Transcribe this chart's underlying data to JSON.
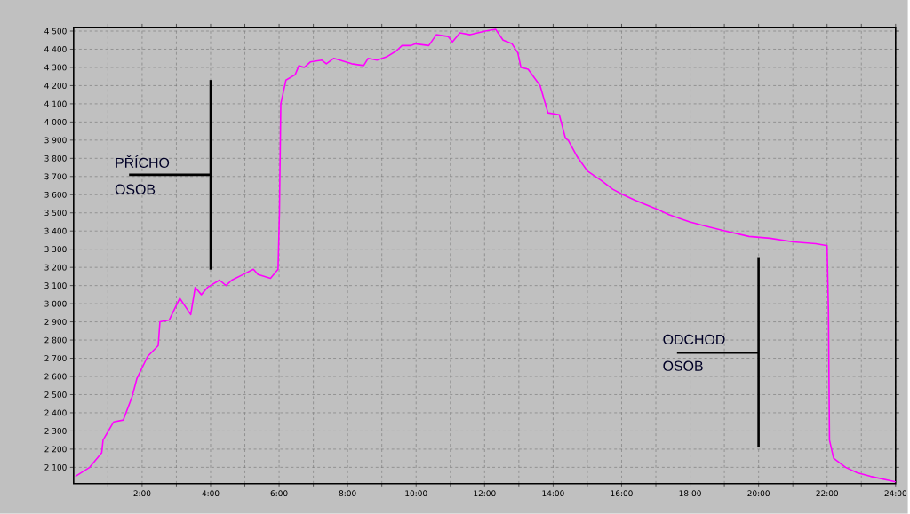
{
  "chart_data": {
    "type": "line",
    "color": "#ff00ff",
    "grid": true,
    "x": [
      0.05,
      0.47,
      0.82,
      0.86,
      1.17,
      1.45,
      1.71,
      1.85,
      2.16,
      2.47,
      2.52,
      2.79,
      3.1,
      3.42,
      3.55,
      3.73,
      3.91,
      4.26,
      4.45,
      4.62,
      4.94,
      5.25,
      5.39,
      5.75,
      5.97,
      6.01,
      6.05,
      6.2,
      6.47,
      6.58,
      6.74,
      6.91,
      7.25,
      7.38,
      7.6,
      8.12,
      8.47,
      8.6,
      8.86,
      9.16,
      9.42,
      9.59,
      9.85,
      9.98,
      10.37,
      10.59,
      10.94,
      11.06,
      11.28,
      11.58,
      12.02,
      12.32,
      12.54,
      12.8,
      12.97,
      13.06,
      13.27,
      13.62,
      13.85,
      14.18,
      14.36,
      14.44,
      14.7,
      15.0,
      15.39,
      15.74,
      16.04,
      16.39,
      17.04,
      17.38,
      17.99,
      18.38,
      19.03,
      19.72,
      20.33,
      21.02,
      21.67,
      21.97,
      22.0,
      22.04,
      22.07,
      22.19,
      22.54,
      22.88,
      23.27,
      24.0
    ],
    "values": [
      2050,
      2100,
      2180,
      2250,
      2350,
      2360,
      2490,
      2590,
      2710,
      2770,
      2900,
      2910,
      3030,
      2940,
      3090,
      3050,
      3090,
      3130,
      3100,
      3130,
      3160,
      3190,
      3160,
      3140,
      3190,
      3500,
      4100,
      4230,
      4260,
      4310,
      4300,
      4330,
      4340,
      4320,
      4350,
      4320,
      4310,
      4350,
      4340,
      4360,
      4390,
      4420,
      4420,
      4430,
      4420,
      4480,
      4470,
      4440,
      4490,
      4480,
      4500,
      4510,
      4450,
      4430,
      4380,
      4300,
      4290,
      4200,
      4050,
      4040,
      3910,
      3900,
      3810,
      3730,
      3680,
      3630,
      3600,
      3570,
      3520,
      3490,
      3450,
      3430,
      3400,
      3370,
      3360,
      3340,
      3330,
      3320,
      3320,
      2960,
      2250,
      2150,
      2100,
      2070,
      2050,
      2020
    ],
    "xlim": [
      0,
      24
    ],
    "ylim": [
      2010,
      4520
    ],
    "xticks": [
      {
        "value": 1,
        "label": null
      },
      {
        "value": 2,
        "label": "2:00"
      },
      {
        "value": 3,
        "label": null
      },
      {
        "value": 4,
        "label": "4:00"
      },
      {
        "value": 5,
        "label": null
      },
      {
        "value": 6,
        "label": "6:00"
      },
      {
        "value": 7,
        "label": null
      },
      {
        "value": 8,
        "label": "8:00"
      },
      {
        "value": 9,
        "label": null
      },
      {
        "value": 10,
        "label": "10:00"
      },
      {
        "value": 11,
        "label": null
      },
      {
        "value": 12,
        "label": "12:00"
      },
      {
        "value": 13,
        "label": null
      },
      {
        "value": 14,
        "label": "14:00"
      },
      {
        "value": 15,
        "label": null
      },
      {
        "value": 16,
        "label": "16:00"
      },
      {
        "value": 17,
        "label": null
      },
      {
        "value": 18,
        "label": "18:00"
      },
      {
        "value": 19,
        "label": null
      },
      {
        "value": 20,
        "label": "20:00"
      },
      {
        "value": 21,
        "label": null
      },
      {
        "value": 22,
        "label": "22:00"
      },
      {
        "value": 23,
        "label": null
      },
      {
        "value": 24,
        "label": "24:00"
      }
    ],
    "yticks": [
      {
        "value": 2100,
        "label": "2 100"
      },
      {
        "value": 2200,
        "label": "2 200"
      },
      {
        "value": 2300,
        "label": "2 300"
      },
      {
        "value": 2400,
        "label": "2 400"
      },
      {
        "value": 2500,
        "label": "2 500"
      },
      {
        "value": 2600,
        "label": "2 600"
      },
      {
        "value": 2700,
        "label": "2 700"
      },
      {
        "value": 2800,
        "label": "2 800"
      },
      {
        "value": 2900,
        "label": "2 900"
      },
      {
        "value": 3000,
        "label": "3 000"
      },
      {
        "value": 3100,
        "label": "3 100"
      },
      {
        "value": 3200,
        "label": "3 200"
      },
      {
        "value": 3300,
        "label": "3 300"
      },
      {
        "value": 3400,
        "label": "3 400"
      },
      {
        "value": 3500,
        "label": "3 500"
      },
      {
        "value": 3600,
        "label": "3 600"
      },
      {
        "value": 3700,
        "label": "3 700"
      },
      {
        "value": 3800,
        "label": "3 800"
      },
      {
        "value": 3900,
        "label": "3 900"
      },
      {
        "value": 4000,
        "label": "4 000"
      },
      {
        "value": 4100,
        "label": "4 100"
      },
      {
        "value": 4200,
        "label": "4 200"
      },
      {
        "value": 4300,
        "label": "4 300"
      },
      {
        "value": 4400,
        "label": "4 400"
      },
      {
        "value": 4500,
        "label": "4 500"
      }
    ],
    "annotations": [
      "PŘÍCHO OSOB",
      "ODCHOD OSOB"
    ]
  }
}
